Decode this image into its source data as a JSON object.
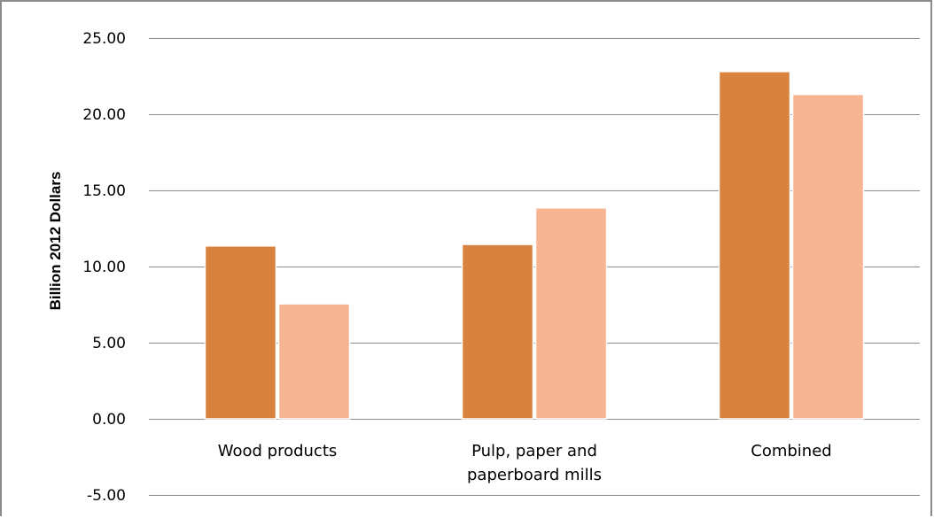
{
  "chart_data": {
    "type": "bar",
    "title": "",
    "xlabel": "",
    "ylabel": "Billion 2012 Dollars",
    "ylim": [
      -5,
      25
    ],
    "yticks": [
      "25.00",
      "20.00",
      "15.00",
      "10.00",
      "5.00",
      "0.00",
      "-5.00"
    ],
    "ytick_values": [
      25,
      20,
      15,
      10,
      5,
      0,
      -5
    ],
    "categories": [
      [
        "Wood products"
      ],
      [
        "Pulp, paper and",
        "paperboard mills"
      ],
      [
        "Combined"
      ]
    ],
    "series": [
      {
        "values": [
          11.35,
          11.45,
          22.8
        ],
        "color": "#d9823d"
      },
      {
        "values": [
          7.55,
          13.85,
          21.3
        ],
        "color": "#f7b491"
      }
    ],
    "grid": true,
    "legend": "none"
  }
}
